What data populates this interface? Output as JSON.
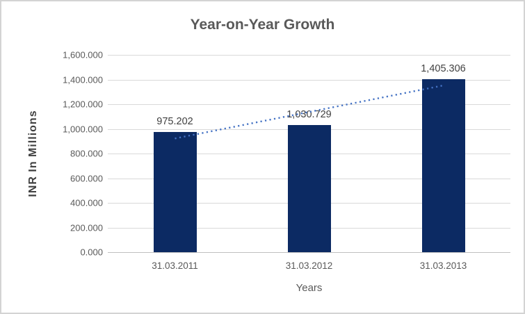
{
  "chart_data": {
    "type": "bar",
    "title": "Year-on-Year Growth",
    "xlabel": "Years",
    "ylabel": "INR In Millions",
    "categories": [
      "31.03.2011",
      "31.03.2012",
      "31.03.2013"
    ],
    "values": [
      975.202,
      1030.729,
      1405.306
    ],
    "data_labels": [
      "975.202",
      "1,030.729",
      "1,405.306"
    ],
    "ylim": [
      0,
      1600
    ],
    "ytick_step": 200,
    "ytick_labels": [
      "1,600.000",
      "1,400.000",
      "1,200.000",
      "1,000.000",
      "800.000",
      "600.000",
      "400.000",
      "200.000",
      "0.000"
    ],
    "grid": true,
    "legend": "none",
    "trendline": {
      "type": "linear",
      "style": "dotted",
      "color": "#4472C4"
    },
    "colors": {
      "bar": "#0C2A63",
      "trendline": "#4472C4",
      "title_text": "#595959",
      "axis_text": "#595959",
      "data_label_text": "#404040",
      "gridline": "#D9D9D9",
      "axis_line": "#BFBFBF",
      "frame_border": "#D3D3D3",
      "background": "#FFFFFF"
    }
  }
}
